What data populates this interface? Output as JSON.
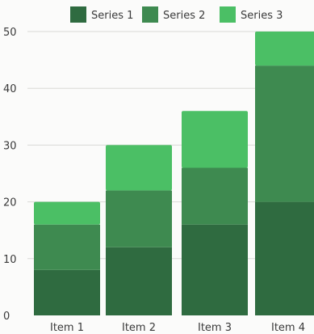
{
  "chart_data": {
    "type": "bar",
    "stacked": true,
    "categories": [
      "Item 1",
      "Item 2",
      "Item 3",
      "Item 4"
    ],
    "series": [
      {
        "name": "Series 1",
        "values": [
          8,
          12,
          16,
          20
        ],
        "color": "#2f6b40"
      },
      {
        "name": "Series 2",
        "values": [
          8,
          10,
          10,
          24
        ],
        "color": "#3e8a50"
      },
      {
        "name": "Series 3",
        "values": [
          4,
          8,
          10,
          6
        ],
        "color": "#4bbf65"
      }
    ],
    "yticks": [
      0,
      10,
      20,
      30,
      40,
      50
    ],
    "ylim": [
      0,
      50
    ],
    "grid": true,
    "legend_position": "top"
  }
}
